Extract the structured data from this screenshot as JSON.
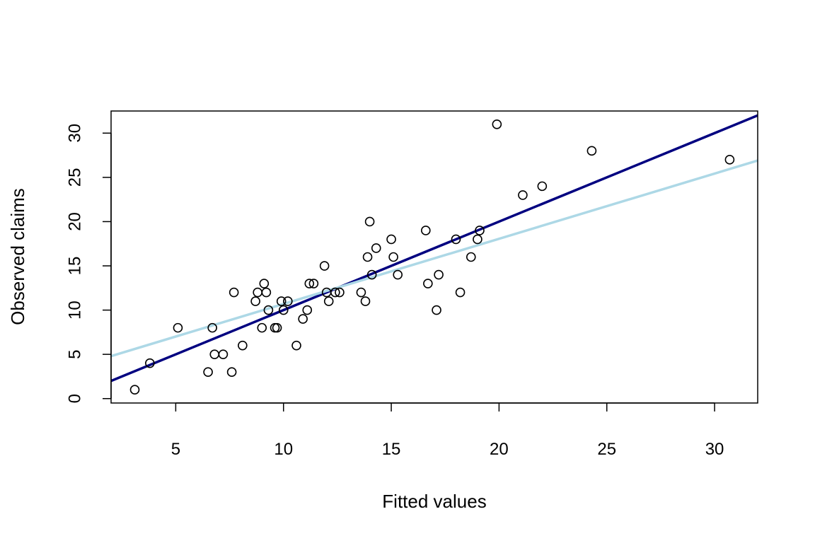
{
  "chart_data": {
    "type": "scatter",
    "title": "",
    "xlabel": "Fitted values",
    "ylabel": "Observed claims",
    "xlim": [
      2,
      32
    ],
    "ylim": [
      -0.5,
      32.5
    ],
    "x_ticks": [
      5,
      10,
      15,
      20,
      25,
      30
    ],
    "y_ticks": [
      0,
      5,
      10,
      15,
      20,
      25,
      30
    ],
    "grid": false,
    "legend": "none",
    "point_style": {
      "shape": "open-circle",
      "color": "#000000"
    },
    "points": [
      {
        "x": 3.1,
        "y": 1
      },
      {
        "x": 3.8,
        "y": 4
      },
      {
        "x": 5.1,
        "y": 8
      },
      {
        "x": 6.5,
        "y": 3
      },
      {
        "x": 6.7,
        "y": 8
      },
      {
        "x": 6.8,
        "y": 5
      },
      {
        "x": 7.2,
        "y": 5
      },
      {
        "x": 7.6,
        "y": 3
      },
      {
        "x": 7.7,
        "y": 12
      },
      {
        "x": 8.1,
        "y": 6
      },
      {
        "x": 8.7,
        "y": 11
      },
      {
        "x": 8.8,
        "y": 12
      },
      {
        "x": 9.0,
        "y": 8
      },
      {
        "x": 9.1,
        "y": 13
      },
      {
        "x": 9.2,
        "y": 12
      },
      {
        "x": 9.3,
        "y": 10
      },
      {
        "x": 9.6,
        "y": 8
      },
      {
        "x": 9.7,
        "y": 8
      },
      {
        "x": 9.9,
        "y": 11
      },
      {
        "x": 10.0,
        "y": 10
      },
      {
        "x": 10.2,
        "y": 11
      },
      {
        "x": 10.6,
        "y": 6
      },
      {
        "x": 10.9,
        "y": 9
      },
      {
        "x": 11.1,
        "y": 10
      },
      {
        "x": 11.2,
        "y": 13
      },
      {
        "x": 11.4,
        "y": 13
      },
      {
        "x": 11.9,
        "y": 15
      },
      {
        "x": 12.0,
        "y": 12
      },
      {
        "x": 12.1,
        "y": 11
      },
      {
        "x": 12.4,
        "y": 12
      },
      {
        "x": 12.6,
        "y": 12
      },
      {
        "x": 13.6,
        "y": 12
      },
      {
        "x": 13.8,
        "y": 11
      },
      {
        "x": 13.9,
        "y": 16
      },
      {
        "x": 14.0,
        "y": 20
      },
      {
        "x": 14.1,
        "y": 14
      },
      {
        "x": 14.3,
        "y": 17
      },
      {
        "x": 15.0,
        "y": 18
      },
      {
        "x": 15.1,
        "y": 16
      },
      {
        "x": 15.3,
        "y": 14
      },
      {
        "x": 16.6,
        "y": 19
      },
      {
        "x": 16.7,
        "y": 13
      },
      {
        "x": 17.1,
        "y": 10
      },
      {
        "x": 17.2,
        "y": 14
      },
      {
        "x": 18.0,
        "y": 18
      },
      {
        "x": 18.2,
        "y": 12
      },
      {
        "x": 18.7,
        "y": 16
      },
      {
        "x": 19.0,
        "y": 18
      },
      {
        "x": 19.1,
        "y": 19
      },
      {
        "x": 19.9,
        "y": 31
      },
      {
        "x": 21.1,
        "y": 23
      },
      {
        "x": 22.0,
        "y": 24
      },
      {
        "x": 24.3,
        "y": 28
      },
      {
        "x": 30.7,
        "y": 27
      }
    ],
    "lines": [
      {
        "color": "#000080",
        "x": [
          2,
          32
        ],
        "y": [
          2.0,
          32.0
        ]
      },
      {
        "color": "#add8e6",
        "x": [
          2,
          32
        ],
        "y": [
          4.8,
          26.9
        ]
      }
    ]
  }
}
